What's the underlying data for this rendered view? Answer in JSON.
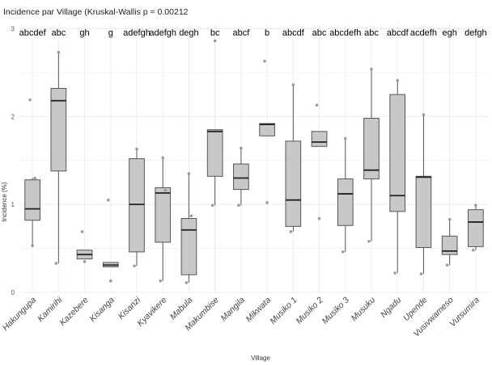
{
  "chart_data": {
    "type": "boxplot",
    "title": "Incidence par Village (Kruskal-Wallis p = 0.00212",
    "xlabel": "Village",
    "ylabel": "Incidence (%)",
    "ylim": [
      0,
      3.05
    ],
    "yticks": [
      "0",
      "1",
      "2",
      "3"
    ],
    "grid": true,
    "box_fill": "#c8c8c8",
    "box_stroke": "#555555",
    "grid_color": "#ececec",
    "categories": [
      "Hakungupa",
      "Kamirihi",
      "Kazebere",
      "Kisanga",
      "Kisanzi",
      "Kyavikere",
      "Mabula",
      "Makumbise",
      "Mangila",
      "Mikwata",
      "Musiko 1",
      "Musiko 2",
      "Musiko 3",
      "Musuku",
      "Ngadu",
      "Upende",
      "Vusivwameso",
      "Vutsumira"
    ],
    "letters": [
      "abcdef",
      "abc",
      "gh",
      "g",
      "adefgh",
      "adefgh",
      "degh",
      "bc",
      "abcf",
      "b",
      "abcdf",
      "abc",
      "abcdefh",
      "abc",
      "abcdf",
      "acdefh",
      "egh",
      "defgh"
    ],
    "series": [
      {
        "category": "Hakungupa",
        "min": 0.53,
        "q1": 0.82,
        "median": 0.95,
        "q3": 1.28,
        "max": 1.3,
        "outliers": [],
        "points": [
          2.19,
          0.53,
          1.3
        ]
      },
      {
        "category": "Kamirihi",
        "min": 0.33,
        "q1": 1.38,
        "median": 2.18,
        "q3": 2.32,
        "max": 2.73,
        "outliers": [],
        "points": [
          0.33,
          2.73
        ]
      },
      {
        "category": "Kazebere",
        "min": 0.38,
        "q1": 0.38,
        "median": 0.43,
        "q3": 0.48,
        "max": 0.48,
        "outliers": [],
        "points": [
          0.69,
          0.35
        ]
      },
      {
        "category": "Kisanga",
        "min": 0.29,
        "q1": 0.29,
        "median": 0.31,
        "q3": 0.34,
        "max": 0.34,
        "outliers": [],
        "points": [
          1.05,
          0.13
        ]
      },
      {
        "category": "Kisanzi",
        "min": 0.3,
        "q1": 0.46,
        "median": 1.0,
        "q3": 1.52,
        "max": 1.63,
        "outliers": [],
        "points": [
          0.3,
          1.63
        ]
      },
      {
        "category": "Kyavikere",
        "min": 0.13,
        "q1": 0.57,
        "median": 1.13,
        "q3": 1.19,
        "max": 1.53,
        "outliers": [],
        "points": [
          0.13,
          1.53,
          1.16
        ]
      },
      {
        "category": "Mabula",
        "min": 0.11,
        "q1": 0.2,
        "median": 0.71,
        "q3": 0.84,
        "max": 1.35,
        "outliers": [],
        "points": [
          0.11,
          1.35,
          0.87
        ]
      },
      {
        "category": "Makumbise",
        "min": 0.99,
        "q1": 1.32,
        "median": 1.83,
        "q3": 1.85,
        "max": 1.85,
        "outliers": [
          2.86
        ],
        "points": [
          0.99
        ]
      },
      {
        "category": "Mangila",
        "min": 0.99,
        "q1": 1.17,
        "median": 1.3,
        "q3": 1.46,
        "max": 1.64,
        "outliers": [],
        "points": [
          0.99,
          1.64
        ]
      },
      {
        "category": "Mikwata",
        "min": 1.78,
        "q1": 1.78,
        "median": 1.91,
        "q3": 1.92,
        "max": 1.92,
        "outliers": [
          2.63,
          1.02
        ],
        "points": []
      },
      {
        "category": "Musiko 1",
        "min": 0.69,
        "q1": 0.75,
        "median": 1.05,
        "q3": 1.72,
        "max": 2.36,
        "outliers": [],
        "points": [
          0.69,
          2.36
        ]
      },
      {
        "category": "Musiko 2",
        "min": 1.66,
        "q1": 1.66,
        "median": 1.71,
        "q3": 1.83,
        "max": 1.83,
        "outliers": [
          2.13,
          0.84
        ],
        "points": []
      },
      {
        "category": "Musiko 3",
        "min": 0.46,
        "q1": 0.76,
        "median": 1.12,
        "q3": 1.29,
        "max": 1.75,
        "outliers": [],
        "points": [
          0.46,
          1.75
        ]
      },
      {
        "category": "Musuku",
        "min": 0.58,
        "q1": 1.29,
        "median": 1.39,
        "q3": 1.98,
        "max": 2.54,
        "outliers": [],
        "points": [
          0.58,
          2.54
        ]
      },
      {
        "category": "Ngadu",
        "min": 0.22,
        "q1": 0.92,
        "median": 1.1,
        "q3": 2.25,
        "max": 2.41,
        "outliers": [],
        "points": [
          0.22,
          2.41
        ]
      },
      {
        "category": "Upende",
        "min": 0.21,
        "q1": 0.51,
        "median": 1.31,
        "q3": 1.32,
        "max": 2.02,
        "outliers": [],
        "points": [
          0.21,
          2.02
        ]
      },
      {
        "category": "Vusivwameso",
        "min": 0.31,
        "q1": 0.43,
        "median": 0.47,
        "q3": 0.64,
        "max": 0.83,
        "outliers": [],
        "points": [
          0.31,
          0.83
        ]
      },
      {
        "category": "Vutsumira",
        "min": 0.48,
        "q1": 0.52,
        "median": 0.8,
        "q3": 0.94,
        "max": 0.99,
        "outliers": [],
        "points": [
          0.48,
          0.99
        ]
      }
    ]
  }
}
